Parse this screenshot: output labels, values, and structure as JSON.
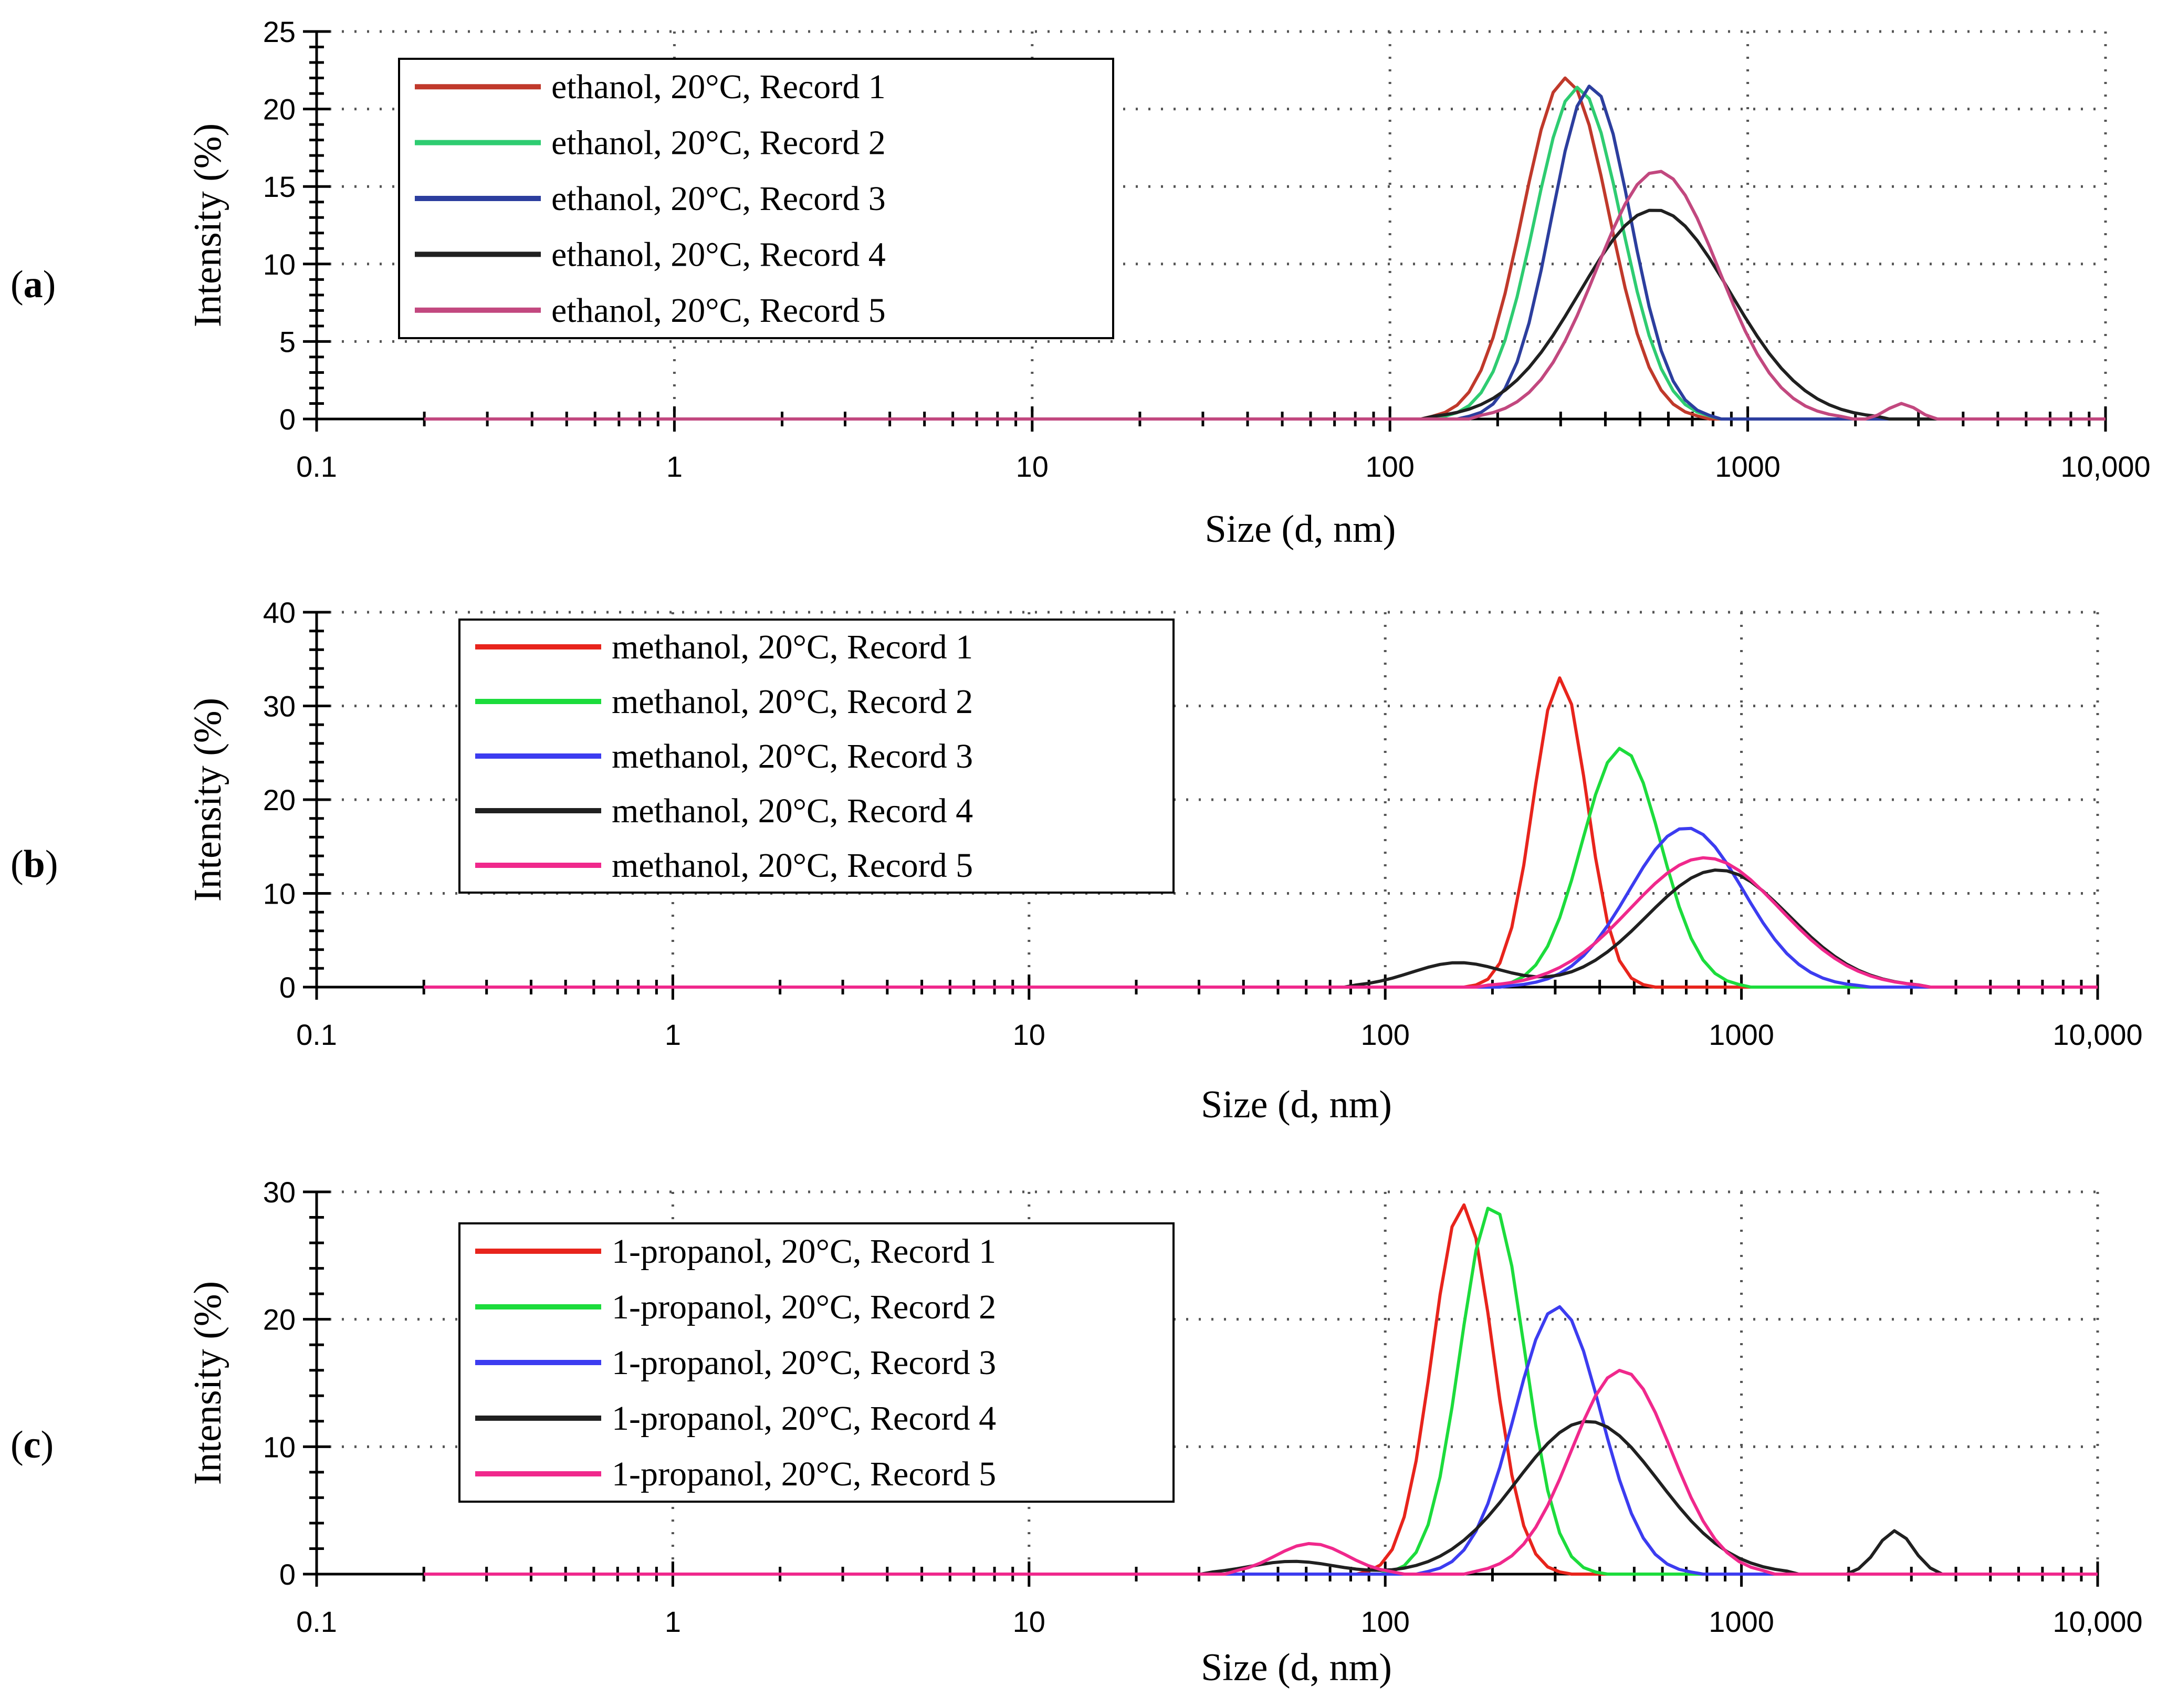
{
  "figure": {
    "colors": {
      "record_1": "#e8241c",
      "record_2": "#1cdc3c",
      "record_3": "#3c3cf0",
      "record_4": "#202020",
      "record_5": "#f0288c",
      "record_1_a": "#c0392b",
      "record_2_a": "#2ecc71",
      "record_3_a": "#2c3e9e",
      "record_4_a": "#202020",
      "record_5_a": "#c2487f"
    }
  },
  "chart_data": [
    {
      "type": "line",
      "panel_label": "a",
      "title": "",
      "xlabel": "Size (d, nm)",
      "ylabel": "Intensity (%)",
      "xscale": "log",
      "xlim": [
        0.1,
        10000
      ],
      "ylim": [
        0,
        25
      ],
      "xticks": [
        0.1,
        1,
        10,
        100,
        1000,
        10000
      ],
      "xtick_labels": [
        "0.1",
        "1",
        "10",
        "100",
        "1000",
        "10,000"
      ],
      "yticks": [
        0,
        5,
        10,
        15,
        20,
        25
      ],
      "ytick_labels": [
        "0",
        "5",
        "10",
        "15",
        "20",
        "25"
      ],
      "grid": true,
      "legend_position": "top-left",
      "series": [
        {
          "name": "ethanol, 20°C, Record 1",
          "color_key": "record_1_a",
          "peak": 22,
          "center": 310,
          "width": 0.12,
          "from": 0.2,
          "to": 10000,
          "extra": []
        },
        {
          "name": "ethanol, 20°C, Record 2",
          "color_key": "record_2_a",
          "peak": 21.4,
          "center": 335,
          "width": 0.12,
          "from": 0.2,
          "to": 10000,
          "extra": []
        },
        {
          "name": "ethanol, 20°C, Record 3",
          "color_key": "record_3_a",
          "peak": 21.5,
          "center": 365,
          "width": 0.11,
          "from": 0.2,
          "to": 10000,
          "extra": []
        },
        {
          "name": "ethanol, 20°C, Record 4",
          "color_key": "record_4_a",
          "peak": 13.5,
          "center": 550,
          "width": 0.21,
          "from": 0.2,
          "to": 10000,
          "extra": []
        },
        {
          "name": "ethanol, 20°C, Record 5",
          "color_key": "record_5_a",
          "peak": 16,
          "center": 560,
          "width": 0.17,
          "from": 0.2,
          "to": 10000,
          "extra": [
            {
              "peak": 1,
              "center": 2700,
              "width": 0.04
            }
          ]
        }
      ]
    },
    {
      "type": "line",
      "panel_label": "b",
      "title": "",
      "xlabel": "Size (d, nm)",
      "ylabel": "Intensity (%)",
      "xscale": "log",
      "xlim": [
        0.1,
        10000
      ],
      "ylim": [
        0,
        40
      ],
      "xticks": [
        0.1,
        1,
        10,
        100,
        1000,
        10000
      ],
      "xtick_labels": [
        "0.1",
        "1",
        "10",
        "100",
        "1000",
        "10,000"
      ],
      "yticks": [
        0,
        10,
        20,
        30,
        40
      ],
      "ytick_labels": [
        "0",
        "10",
        "20",
        "30",
        "40"
      ],
      "grid": true,
      "legend_position": "top-left",
      "series": [
        {
          "name": "methanol, 20°C, Record 1",
          "color_key": "record_1",
          "peak": 33,
          "center": 310,
          "width": 0.075,
          "from": 0.2,
          "to": 10000,
          "extra": []
        },
        {
          "name": "methanol, 20°C, Record 2",
          "color_key": "record_2",
          "peak": 25.5,
          "center": 460,
          "width": 0.11,
          "from": 0.2,
          "to": 10000,
          "extra": []
        },
        {
          "name": "methanol, 20°C, Record 3",
          "color_key": "record_3",
          "peak": 17,
          "center": 700,
          "width": 0.16,
          "from": 0.2,
          "to": 10000,
          "extra": []
        },
        {
          "name": "methanol, 20°C, Record 4",
          "color_key": "record_4",
          "peak": 12.5,
          "center": 860,
          "width": 0.2,
          "from": 0.2,
          "to": 10000,
          "extra": [
            {
              "peak": 2.6,
              "center": 160,
              "width": 0.13
            }
          ]
        },
        {
          "name": "methanol, 20°C, Record 5",
          "color_key": "record_5",
          "peak": 13.8,
          "center": 790,
          "width": 0.21,
          "from": 0.2,
          "to": 10000,
          "extra": []
        }
      ]
    },
    {
      "type": "line",
      "panel_label": "c",
      "title": "",
      "xlabel": "Size (d, nm)",
      "ylabel": "Intensity (%)",
      "xscale": "log",
      "xlim": [
        0.1,
        10000
      ],
      "ylim": [
        0,
        30
      ],
      "xticks": [
        0.1,
        1,
        10,
        100,
        1000,
        10000
      ],
      "xtick_labels": [
        "0.1",
        "1",
        "10",
        "100",
        "1000",
        "10,000"
      ],
      "yticks": [
        0,
        10,
        20,
        30
      ],
      "ytick_labels": [
        "0",
        "10",
        "20",
        "30"
      ],
      "grid": true,
      "legend_position": "top-left",
      "series": [
        {
          "name": "1-propanol, 20°C, Record 1",
          "color_key": "record_1",
          "peak": 29,
          "center": 165,
          "width": 0.085,
          "from": 0.2,
          "to": 10000,
          "extra": []
        },
        {
          "name": "1-propanol, 20°C, Record 2",
          "color_key": "record_2",
          "peak": 29,
          "center": 200,
          "width": 0.09,
          "from": 0.2,
          "to": 10000,
          "extra": []
        },
        {
          "name": "1-propanol, 20°C, Record 3",
          "color_key": "record_3",
          "peak": 21,
          "center": 305,
          "width": 0.12,
          "from": 0.2,
          "to": 10000,
          "extra": []
        },
        {
          "name": "1-propanol, 20°C, Record 4",
          "color_key": "record_4",
          "peak": 12,
          "center": 370,
          "width": 0.2,
          "from": 0.2,
          "to": 10000,
          "extra": [
            {
              "peak": 1,
              "center": 55,
              "width": 0.12
            },
            {
              "peak": 3.4,
              "center": 2700,
              "width": 0.05
            }
          ]
        },
        {
          "name": "1-propanol, 20°C, Record 5",
          "color_key": "record_5",
          "peak": 16,
          "center": 460,
          "width": 0.14,
          "from": 0.2,
          "to": 10000,
          "extra": [
            {
              "peak": 2.4,
              "center": 62,
              "width": 0.1
            }
          ]
        }
      ]
    }
  ]
}
